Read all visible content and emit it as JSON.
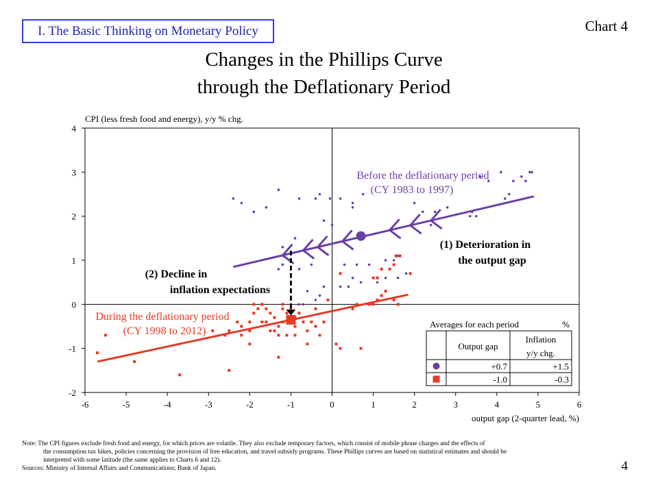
{
  "header": {
    "section_label": "I. The Basic Thinking on Monetary Policy",
    "chart_id": "Chart 4",
    "title_line1": "Changes in the Phillips Curve",
    "title_line2": "through the Deflationary Period"
  },
  "chart_data": {
    "type": "scatter",
    "ylabel": "CPI (less fresh food and energy), y/y % chg.",
    "xlabel": "output gap (2-quarter lead, %)",
    "xlim": [
      -6,
      6
    ],
    "ylim": [
      -2,
      4
    ],
    "x_ticks": [
      "-6",
      "-5",
      "-4",
      "-3",
      "-2",
      "-1",
      "0",
      "1",
      "2",
      "3",
      "4",
      "5",
      "6"
    ],
    "y_ticks": [
      "4",
      "3",
      "2",
      "1",
      "0",
      "-1",
      "-2"
    ],
    "grid": false,
    "colors": {
      "before": "#6a3fa6",
      "during": "#e53a24"
    },
    "series": [
      {
        "name": "Before the deflationary period",
        "period": "(CY 1983 to 1997)",
        "marker": "dot",
        "points": [
          [
            -2.4,
            2.4
          ],
          [
            -2.2,
            2.3
          ],
          [
            -1.9,
            2.1
          ],
          [
            -1.6,
            2.2
          ],
          [
            -1.3,
            2.6
          ],
          [
            -0.8,
            2.4
          ],
          [
            -0.4,
            2.4
          ],
          [
            -0.3,
            2.5
          ],
          [
            -0.05,
            2.4
          ],
          [
            0.2,
            2.4
          ],
          [
            0.5,
            2.3
          ],
          [
            0.5,
            2.2
          ],
          [
            0.75,
            2.5
          ],
          [
            2.0,
            2.3
          ],
          [
            2.2,
            2.1
          ],
          [
            2.5,
            2.1
          ],
          [
            2.8,
            2.2
          ],
          [
            3.35,
            2.0
          ],
          [
            3.4,
            2.1
          ],
          [
            3.5,
            2.0
          ],
          [
            4.2,
            2.4
          ],
          [
            4.3,
            2.5
          ],
          [
            4.4,
            2.8
          ],
          [
            4.6,
            2.9
          ],
          [
            4.7,
            2.8
          ],
          [
            4.8,
            3.0
          ],
          [
            4.85,
            3.0
          ],
          [
            4.1,
            3.0
          ],
          [
            3.6,
            2.9
          ],
          [
            3.8,
            2.8
          ],
          [
            2.4,
            1.8
          ],
          [
            -0.2,
            1.9
          ],
          [
            0,
            1.8
          ],
          [
            -1.2,
            1.3
          ],
          [
            -0.9,
            1.5
          ],
          [
            -1.2,
            1.1
          ],
          [
            -1.2,
            0.9
          ],
          [
            -1.3,
            0.8
          ],
          [
            -0.8,
            0.8
          ],
          [
            -0.5,
            0.9
          ],
          [
            0.3,
            0.9
          ],
          [
            0.6,
            0.9
          ],
          [
            0.9,
            0.9
          ],
          [
            0.5,
            0.6
          ],
          [
            0.2,
            0.7
          ],
          [
            -0.6,
            0.3
          ],
          [
            -0.2,
            0.4
          ],
          [
            0.2,
            0.4
          ],
          [
            0.4,
            0.4
          ],
          [
            0.7,
            0.5
          ],
          [
            1.1,
            0.5
          ],
          [
            1.3,
            0.6
          ],
          [
            1.6,
            0.6
          ],
          [
            1.8,
            0.7
          ],
          [
            1.3,
            1.0
          ],
          [
            1.5,
            1.0
          ],
          [
            1.6,
            1.1
          ],
          [
            -0.8,
            0.0
          ],
          [
            -0.7,
            0.0
          ],
          [
            -0.4,
            0.1
          ],
          [
            -0.3,
            0.2
          ],
          [
            -0.1,
            0.1
          ]
        ]
      },
      {
        "name": "During the deflationary period",
        "period": "(CY 1998 to 2012)",
        "marker": "square",
        "points": [
          [
            -5.7,
            -1.1
          ],
          [
            -5.5,
            -0.7
          ],
          [
            -4.8,
            -1.3
          ],
          [
            -3.7,
            -1.6
          ],
          [
            -2.9,
            -0.6
          ],
          [
            -2.6,
            -0.7
          ],
          [
            -2.5,
            -0.6
          ],
          [
            -2.5,
            -1.5
          ],
          [
            -2.3,
            -0.4
          ],
          [
            -2.2,
            -0.5
          ],
          [
            -2.2,
            -0.7
          ],
          [
            -2.0,
            -0.4
          ],
          [
            -2.0,
            -0.6
          ],
          [
            -2.0,
            -0.9
          ],
          [
            -1.9,
            -0.2
          ],
          [
            -1.8,
            -0.1
          ],
          [
            -1.7,
            0.0
          ],
          [
            -1.7,
            -0.4
          ],
          [
            -1.6,
            -0.1
          ],
          [
            -1.6,
            -0.4
          ],
          [
            -1.5,
            -0.2
          ],
          [
            -1.5,
            -0.6
          ],
          [
            -1.4,
            -0.3
          ],
          [
            -1.4,
            -0.6
          ],
          [
            -1.3,
            -0.5
          ],
          [
            -1.3,
            -0.7
          ],
          [
            -1.3,
            -1.2
          ],
          [
            -1.2,
            0.0
          ],
          [
            -1.2,
            -0.1
          ],
          [
            -1.2,
            -0.4
          ],
          [
            -1.1,
            -0.2
          ],
          [
            -1.1,
            -0.7
          ],
          [
            -1.0,
            -0.1
          ],
          [
            -1.0,
            -0.4
          ],
          [
            -0.9,
            -0.3
          ],
          [
            -0.9,
            -0.5
          ],
          [
            -0.9,
            -0.7
          ],
          [
            -0.8,
            -0.2
          ],
          [
            -0.7,
            -0.4
          ],
          [
            -0.6,
            -0.6
          ],
          [
            -0.6,
            -0.9
          ],
          [
            -0.5,
            -0.4
          ],
          [
            -0.4,
            -0.1
          ],
          [
            -0.4,
            -0.5
          ],
          [
            -0.3,
            -0.7
          ],
          [
            -0.2,
            -0.4
          ],
          [
            -0.1,
            0.1
          ],
          [
            0.1,
            -0.9
          ],
          [
            0.2,
            -1.0
          ],
          [
            0.7,
            -1.0
          ],
          [
            0.5,
            -0.1
          ],
          [
            0.6,
            0.0
          ],
          [
            0.9,
            0.0
          ],
          [
            1.0,
            0.0
          ],
          [
            1.1,
            0.1
          ],
          [
            1.2,
            0.2
          ],
          [
            1.3,
            0.3
          ],
          [
            1.5,
            0.1
          ],
          [
            1.6,
            0.0
          ],
          [
            0.2,
            0.7
          ],
          [
            1.2,
            0.8
          ],
          [
            1.4,
            0.8
          ],
          [
            1.5,
            0.9
          ],
          [
            1.9,
            0.7
          ],
          [
            1.65,
            1.1
          ],
          [
            1.55,
            1.1
          ],
          [
            1.0,
            0.6
          ],
          [
            1.1,
            0.6
          ],
          [
            -1.9,
            0.0
          ],
          [
            -1.7,
            0.0
          ]
        ]
      }
    ],
    "before_line": {
      "x1": -2.4,
      "y1": 0.85,
      "x2": 4.9,
      "y2": 2.45
    },
    "during_line": {
      "x1": -5.7,
      "y1": -1.3,
      "x2": 1.85,
      "y2": 0.22
    },
    "before_avg": {
      "x": 0.7,
      "y": 1.55
    },
    "during_avg": {
      "x": -1.0,
      "y": -0.35
    },
    "chevrons_x": [
      -1.2,
      -0.7,
      -0.35,
      0.25,
      1.4,
      1.9,
      2.4
    ],
    "annotations": {
      "before_l1": "Before the deflationary period",
      "before_l2": "(CY 1983 to 1997)",
      "during_l1": "During the deflationary period",
      "during_l2": "(CY 1998 to 2012)",
      "gap_l1": "(1) Deterioration in",
      "gap_l2": "the output gap",
      "exp_l1": "(2) Decline in",
      "exp_l2": "inflation expectations"
    },
    "averages_table": {
      "title": "Averages for each period",
      "unit": "%",
      "col1": "Output gap",
      "col2_l1": "Inflation",
      "col2_l2": "y/y chg.",
      "rows": [
        {
          "gap": "+0.7",
          "inflation": "+1.5"
        },
        {
          "gap": "-1.0",
          "inflation": "-0.3"
        }
      ]
    }
  },
  "notes": {
    "line1": "Note: The CPI figures exclude fresh food and energy, for which prices are volatile. They also exclude temporary factors, which consist of mobile phone charges and the effects of",
    "line2": "the consumption tax hikes, policies concerning the provision of free education, and travel subsidy programs. These Phillips curves are based on statistical estimates and should be",
    "line3": "interpreted with some latitude (the same applies to Charts 6 and 12).",
    "sources": "Sources: Ministry of Internal Affairs and Communications; Bank of Japan."
  },
  "page_number": "4"
}
